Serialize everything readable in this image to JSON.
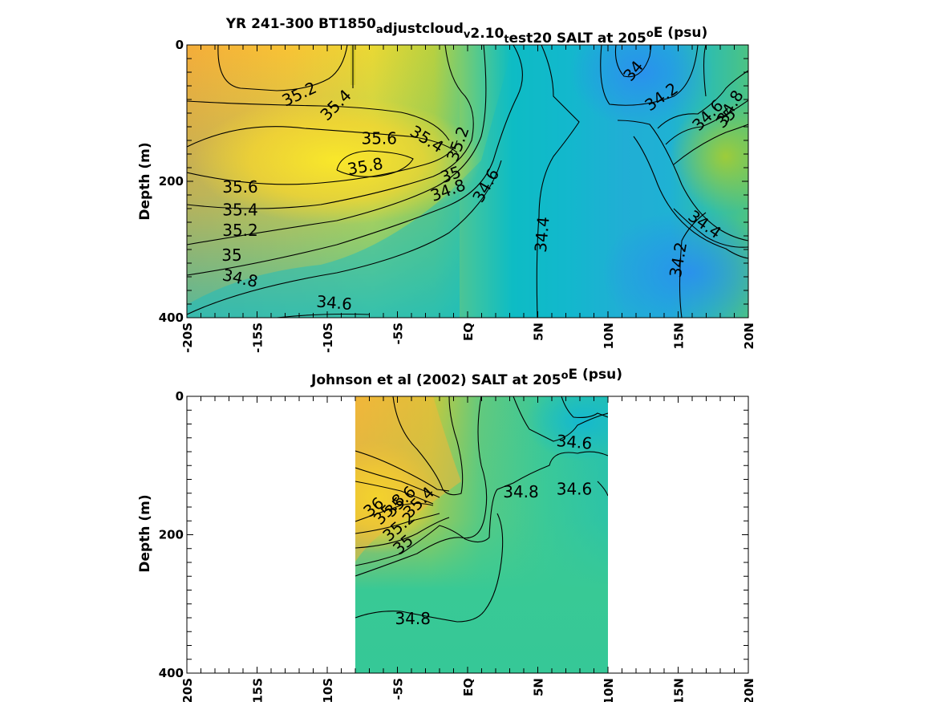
{
  "chart_data": [
    {
      "type": "heatmap",
      "subtype": "filled contour",
      "title": {
        "parts": [
          {
            "t": "YR 241-300 BT1850"
          },
          {
            "t": "a",
            "sub": true
          },
          {
            "t": "djustcloud"
          },
          {
            "t": "v",
            "sub": true
          },
          {
            "t": "2.10"
          },
          {
            "t": "t",
            "sub": true
          },
          {
            "t": "est20 SALT at 205"
          },
          {
            "t": "o",
            "sup": true
          },
          {
            "t": "E (psu)"
          }
        ]
      },
      "ylabel": "Depth (m)",
      "xlabel": "",
      "xlim": [
        -20,
        20
      ],
      "ylim": [
        0,
        400
      ],
      "y_reversed": true,
      "x_tick_labels": [
        "-20S",
        "-15S",
        "-10S",
        "-5S",
        "EQ",
        "5N",
        "10N",
        "15N",
        "20N"
      ],
      "y_tick_labels": [
        "0",
        "200",
        "400"
      ],
      "data_xrange": [
        -20,
        20
      ],
      "contour_labels": [
        {
          "text": "35.2",
          "x": -12,
          "y": 72,
          "angle": -25
        },
        {
          "text": "35.4",
          "x": -9.4,
          "y": 88,
          "angle": -45
        },
        {
          "text": "35.6",
          "x": -6.3,
          "y": 137,
          "angle": 0
        },
        {
          "text": "35.8",
          "x": -7.3,
          "y": 178,
          "angle": -10
        },
        {
          "text": "35.4",
          "x": -2.9,
          "y": 138,
          "angle": 32
        },
        {
          "text": "35.2",
          "x": -0.7,
          "y": 145,
          "angle": -70
        },
        {
          "text": "35",
          "x": -1.2,
          "y": 190,
          "angle": -20
        },
        {
          "text": "34.8",
          "x": -1.4,
          "y": 213,
          "angle": -20
        },
        {
          "text": "34.6",
          "x": 1.3,
          "y": 206,
          "angle": -60
        },
        {
          "text": "34.4",
          "x": 5.3,
          "y": 278,
          "angle": -85
        },
        {
          "text": "34",
          "x": 11.8,
          "y": 38,
          "angle": -50
        },
        {
          "text": "34.2",
          "x": 13.8,
          "y": 76,
          "angle": -35
        },
        {
          "text": "34.6",
          "x": 17.1,
          "y": 103,
          "angle": -45
        },
        {
          "text": "34.8",
          "x": 18.7,
          "y": 91,
          "angle": -60
        },
        {
          "text": "35",
          "x": 18.4,
          "y": 107,
          "angle": -45
        },
        {
          "text": "34.4",
          "x": 16.9,
          "y": 263,
          "angle": 35
        },
        {
          "text": "34.2",
          "x": 15,
          "y": 315,
          "angle": -80
        },
        {
          "text": "35.6",
          "x": -16.2,
          "y": 208,
          "angle": 0
        },
        {
          "text": "35.4",
          "x": -16.2,
          "y": 242,
          "angle": 0
        },
        {
          "text": "35.2",
          "x": -16.2,
          "y": 272,
          "angle": 0
        },
        {
          "text": "35",
          "x": -16.8,
          "y": 308,
          "angle": 0
        },
        {
          "text": "34.8",
          "x": -16.2,
          "y": 342,
          "angle": 12
        },
        {
          "text": "34.6",
          "x": -9.5,
          "y": 378,
          "angle": 5
        }
      ]
    },
    {
      "type": "heatmap",
      "subtype": "filled contour",
      "title": {
        "parts": [
          {
            "t": "Johnson et al (2002) SALT at 205"
          },
          {
            "t": "o",
            "sup": true
          },
          {
            "t": "E (psu)"
          }
        ]
      },
      "ylabel": "Depth (m)",
      "xlabel": "",
      "xlim": [
        -20,
        20
      ],
      "ylim": [
        0,
        400
      ],
      "y_reversed": true,
      "x_tick_labels": [
        "-20S",
        "-15S",
        "-10S",
        "-5S",
        "EQ",
        "5N",
        "10N",
        "15N",
        "20N"
      ],
      "y_tick_labels": [
        "0",
        "200",
        "400"
      ],
      "data_xrange": [
        -8,
        10
      ],
      "contour_labels": [
        {
          "text": "34.6",
          "x": 7.6,
          "y": 66,
          "angle": 5
        },
        {
          "text": "34.8",
          "x": 3.8,
          "y": 138,
          "angle": 0
        },
        {
          "text": "34.6",
          "x": 7.6,
          "y": 134,
          "angle": 0
        },
        {
          "text": "36",
          "x": -6.7,
          "y": 160,
          "angle": -40
        },
        {
          "text": "35.8",
          "x": -5.6,
          "y": 163,
          "angle": -45
        },
        {
          "text": "35.6",
          "x": -4.8,
          "y": 152,
          "angle": -45
        },
        {
          "text": "35.4",
          "x": -3.5,
          "y": 153,
          "angle": -45
        },
        {
          "text": "35.2",
          "x": -4.9,
          "y": 188,
          "angle": -40
        },
        {
          "text": "35",
          "x": -4.6,
          "y": 214,
          "angle": -40
        },
        {
          "text": "34.8",
          "x": -3.9,
          "y": 321,
          "angle": 0
        }
      ]
    }
  ]
}
